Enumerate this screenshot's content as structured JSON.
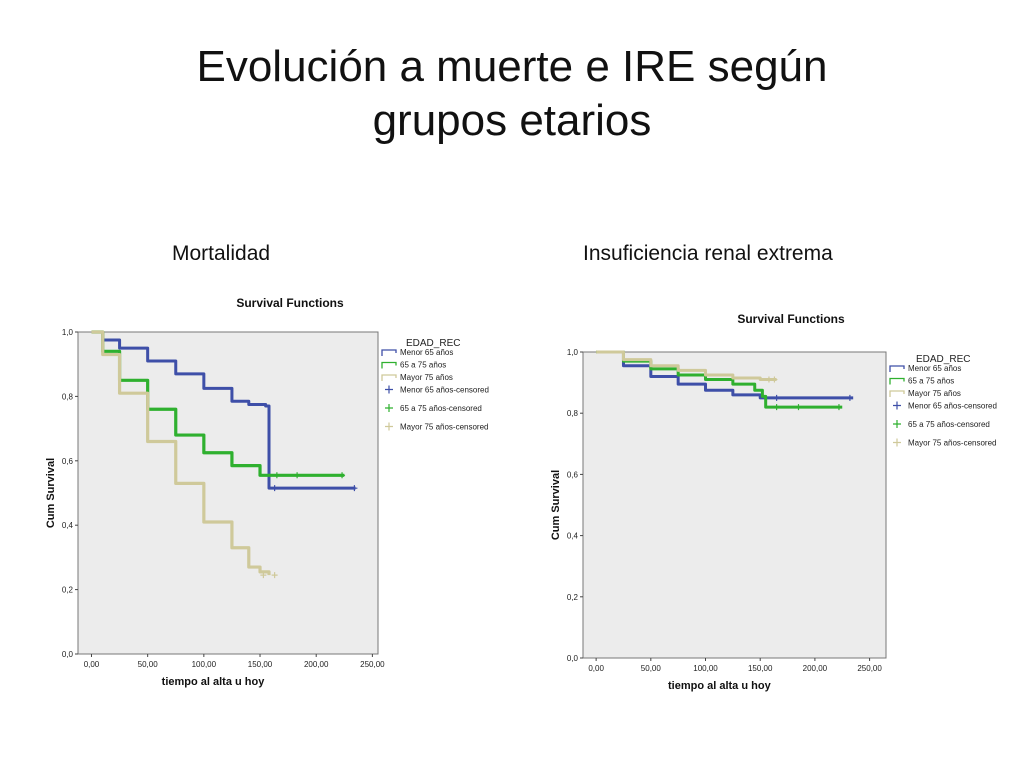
{
  "slide": {
    "title_line1": "Evolución a muerte e IRE según",
    "title_line2": "grupos etarios",
    "label_left": "Mortalidad",
    "label_right": "Insuficiencia renal extrema"
  },
  "colors": {
    "menor65": "#3e4fa8",
    "65a75": "#2fb02f",
    "mayor75": "#cfc99a",
    "plot_bg": "#ececec"
  },
  "chart_data": [
    {
      "type": "line",
      "subtype": "kaplan-meier",
      "title": "Survival Functions",
      "xlabel": "tiempo al alta u hoy",
      "ylabel": "Cum Survival",
      "xlim": [
        -12,
        255
      ],
      "ylim": [
        0,
        1.0
      ],
      "x_ticks": [
        "0,00",
        "50,00",
        "100,00",
        "150,00",
        "200,00",
        "250,00"
      ],
      "y_ticks": [
        "0,0",
        "0,2",
        "0,4",
        "0,6",
        "0,8",
        "1,0"
      ],
      "legend_title": "EDAD_REC",
      "legend_position": "right",
      "legend": [
        "Menor 65 años",
        "65 a 75 años",
        "Mayor 75 años",
        "Menor 65 años-censored",
        "65 a 75 años-censored",
        "Mayor 75 años-censored"
      ],
      "series": [
        {
          "name": "Menor 65 años",
          "color_key": "menor65",
          "x": [
            0,
            10,
            25,
            50,
            75,
            100,
            125,
            140,
            155,
            158,
            158,
            235
          ],
          "y": [
            1.0,
            0.975,
            0.95,
            0.91,
            0.87,
            0.825,
            0.785,
            0.775,
            0.77,
            0.77,
            0.515,
            0.515
          ],
          "censored": [
            [
              163,
              0.515
            ],
            [
              234,
              0.515
            ]
          ]
        },
        {
          "name": "65 a 75 años",
          "color_key": "65a75",
          "x": [
            0,
            10,
            25,
            50,
            75,
            100,
            125,
            150,
            155,
            225
          ],
          "y": [
            1.0,
            0.94,
            0.85,
            0.76,
            0.68,
            0.625,
            0.585,
            0.555,
            0.555,
            0.555
          ],
          "censored": [
            [
              165,
              0.555
            ],
            [
              183,
              0.555
            ],
            [
              223,
              0.555
            ]
          ]
        },
        {
          "name": "Mayor 75 años",
          "color_key": "mayor75",
          "x": [
            0,
            10,
            25,
            50,
            75,
            100,
            125,
            140,
            150,
            158
          ],
          "y": [
            1.0,
            0.93,
            0.81,
            0.66,
            0.53,
            0.41,
            0.33,
            0.27,
            0.255,
            0.245
          ],
          "censored": [
            [
              153,
              0.245
            ],
            [
              163,
              0.245
            ]
          ]
        }
      ]
    },
    {
      "type": "line",
      "subtype": "kaplan-meier",
      "title": "Survival Functions",
      "xlabel": "tiempo al alta u hoy",
      "ylabel": "Cum Survival",
      "xlim": [
        -12,
        265
      ],
      "ylim": [
        0,
        1.0
      ],
      "x_ticks": [
        "0,00",
        "50,00",
        "100,00",
        "150,00",
        "200,00",
        "250,00"
      ],
      "y_ticks": [
        "0,0",
        "0,2",
        "0,4",
        "0,6",
        "0,8",
        "1,0"
      ],
      "legend_title": "EDAD_REC",
      "legend_position": "right",
      "legend": [
        "Menor 65 años",
        "65 a 75 años",
        "Mayor 75 años",
        "Menor 65 años-censored",
        "65 a 75 años-censored",
        "Mayor 75 años-censored"
      ],
      "series": [
        {
          "name": "Menor 65 años",
          "color_key": "menor65",
          "x": [
            0,
            25,
            50,
            75,
            100,
            125,
            150,
            160,
            235
          ],
          "y": [
            1.0,
            0.955,
            0.92,
            0.895,
            0.875,
            0.86,
            0.85,
            0.85,
            0.85
          ],
          "censored": [
            [
              165,
              0.85
            ],
            [
              232,
              0.85
            ]
          ]
        },
        {
          "name": "65 a 75 años",
          "color_key": "65a75",
          "x": [
            0,
            25,
            50,
            75,
            100,
            125,
            145,
            152,
            155,
            225
          ],
          "y": [
            1.0,
            0.97,
            0.945,
            0.925,
            0.91,
            0.895,
            0.875,
            0.855,
            0.82,
            0.82
          ],
          "censored": [
            [
              165,
              0.82
            ],
            [
              185,
              0.82
            ],
            [
              222,
              0.82
            ]
          ]
        },
        {
          "name": "Mayor 75 años",
          "color_key": "mayor75",
          "x": [
            0,
            25,
            50,
            75,
            100,
            125,
            150,
            165
          ],
          "y": [
            1.0,
            0.975,
            0.955,
            0.94,
            0.925,
            0.915,
            0.91,
            0.91
          ],
          "censored": [
            [
              158,
              0.91
            ],
            [
              163,
              0.91
            ]
          ]
        }
      ]
    }
  ]
}
